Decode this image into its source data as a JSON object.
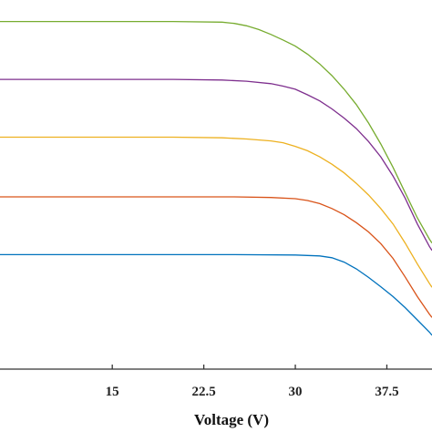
{
  "chart_data": {
    "type": "line",
    "title": "",
    "xlabel": "Voltage (V)",
    "ylabel": "",
    "xlim": [
      5.8,
      41.2
    ],
    "ylim": [
      0,
      6
    ],
    "x_ticks": [
      15,
      22.5,
      30,
      37.5
    ],
    "x_tick_labels": [
      "15",
      "22.5",
      "30",
      "37.5"
    ],
    "grid": false,
    "legend": "none",
    "series": [
      {
        "color": "#0072bd",
        "points": [
          [
            5.8,
            1.86
          ],
          [
            10,
            1.86
          ],
          [
            15,
            1.86
          ],
          [
            20,
            1.86
          ],
          [
            25,
            1.86
          ],
          [
            30,
            1.855
          ],
          [
            32,
            1.84
          ],
          [
            33,
            1.81
          ],
          [
            34,
            1.74
          ],
          [
            35,
            1.63
          ],
          [
            36,
            1.49
          ],
          [
            37,
            1.34
          ],
          [
            38,
            1.18
          ],
          [
            39,
            1.0
          ],
          [
            40,
            0.8
          ],
          [
            41,
            0.6
          ],
          [
            41.2,
            0.55
          ]
        ]
      },
      {
        "color": "#d95319",
        "points": [
          [
            5.8,
            2.8
          ],
          [
            10,
            2.8
          ],
          [
            15,
            2.8
          ],
          [
            20,
            2.8
          ],
          [
            25,
            2.8
          ],
          [
            28,
            2.79
          ],
          [
            30,
            2.77
          ],
          [
            31,
            2.74
          ],
          [
            32,
            2.69
          ],
          [
            33,
            2.61
          ],
          [
            34,
            2.51
          ],
          [
            35,
            2.38
          ],
          [
            36,
            2.23
          ],
          [
            37,
            2.04
          ],
          [
            38,
            1.8
          ],
          [
            39,
            1.5
          ],
          [
            40,
            1.18
          ],
          [
            41,
            0.89
          ],
          [
            41.2,
            0.84
          ]
        ]
      },
      {
        "color": "#edb120",
        "points": [
          [
            5.8,
            3.77
          ],
          [
            10,
            3.77
          ],
          [
            15,
            3.77
          ],
          [
            20,
            3.77
          ],
          [
            24,
            3.76
          ],
          [
            26,
            3.74
          ],
          [
            28,
            3.71
          ],
          [
            29,
            3.68
          ],
          [
            30,
            3.62
          ],
          [
            31,
            3.55
          ],
          [
            32,
            3.45
          ],
          [
            33,
            3.33
          ],
          [
            34,
            3.19
          ],
          [
            35,
            3.02
          ],
          [
            36,
            2.83
          ],
          [
            37,
            2.61
          ],
          [
            38,
            2.36
          ],
          [
            39,
            2.05
          ],
          [
            40,
            1.71
          ],
          [
            41,
            1.39
          ],
          [
            41.2,
            1.33
          ]
        ]
      },
      {
        "color": "#7e2f8e",
        "points": [
          [
            5.8,
            4.71
          ],
          [
            10,
            4.71
          ],
          [
            15,
            4.71
          ],
          [
            20,
            4.71
          ],
          [
            24,
            4.7
          ],
          [
            26,
            4.68
          ],
          [
            28,
            4.64
          ],
          [
            29,
            4.6
          ],
          [
            30,
            4.55
          ],
          [
            31,
            4.46
          ],
          [
            32,
            4.36
          ],
          [
            33,
            4.23
          ],
          [
            34,
            4.08
          ],
          [
            35,
            3.91
          ],
          [
            36,
            3.7
          ],
          [
            37,
            3.45
          ],
          [
            38,
            3.14
          ],
          [
            39,
            2.78
          ],
          [
            40,
            2.36
          ],
          [
            41,
            1.99
          ],
          [
            41.2,
            1.93
          ]
        ]
      },
      {
        "color": "#77ac30",
        "points": [
          [
            5.8,
            5.65
          ],
          [
            10,
            5.65
          ],
          [
            15,
            5.65
          ],
          [
            20,
            5.65
          ],
          [
            24,
            5.64
          ],
          [
            25,
            5.62
          ],
          [
            26,
            5.58
          ],
          [
            27,
            5.52
          ],
          [
            28,
            5.44
          ],
          [
            29,
            5.35
          ],
          [
            30,
            5.25
          ],
          [
            31,
            5.12
          ],
          [
            32,
            4.96
          ],
          [
            33,
            4.77
          ],
          [
            34,
            4.55
          ],
          [
            35,
            4.3
          ],
          [
            36,
            4.0
          ],
          [
            37,
            3.66
          ],
          [
            38,
            3.28
          ],
          [
            39,
            2.87
          ],
          [
            40,
            2.46
          ],
          [
            41,
            2.11
          ],
          [
            41.2,
            2.05
          ]
        ]
      }
    ]
  }
}
